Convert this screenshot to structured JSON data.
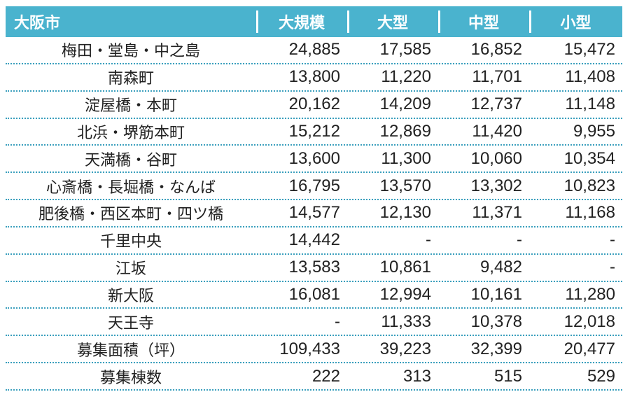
{
  "table": {
    "header": [
      "大阪市",
      "大規模",
      "大型",
      "中型",
      "小型"
    ],
    "rows": [
      {
        "area": "梅田・堂島・中之島",
        "values": [
          "24,885",
          "17,585",
          "16,852",
          "15,472"
        ]
      },
      {
        "area": "南森町",
        "values": [
          "13,800",
          "11,220",
          "11,701",
          "11,408"
        ]
      },
      {
        "area": "淀屋橋・本町",
        "values": [
          "20,162",
          "14,209",
          "12,737",
          "11,148"
        ]
      },
      {
        "area": "北浜・堺筋本町",
        "values": [
          "15,212",
          "12,869",
          "11,420",
          "9,955"
        ]
      },
      {
        "area": "天満橋・谷町",
        "values": [
          "13,600",
          "11,300",
          "10,060",
          "10,354"
        ]
      },
      {
        "area": "心斎橋・長堀橋・なんば",
        "values": [
          "16,795",
          "13,570",
          "13,302",
          "10,823"
        ]
      },
      {
        "area": "肥後橋・西区本町・四ツ橋",
        "values": [
          "14,577",
          "12,130",
          "11,371",
          "11,168"
        ]
      },
      {
        "area": "千里中央",
        "values": [
          "14,442",
          "-",
          "-",
          "-"
        ]
      },
      {
        "area": "江坂",
        "values": [
          "13,583",
          "10,861",
          "9,482",
          "-"
        ]
      },
      {
        "area": "新大阪",
        "values": [
          "16,081",
          "12,994",
          "10,161",
          "11,280"
        ]
      },
      {
        "area": "天王寺",
        "values": [
          "-",
          "11,333",
          "10,378",
          "12,018"
        ]
      },
      {
        "area": "募集面積（坪）",
        "values": [
          "109,433",
          "39,223",
          "32,399",
          "20,477"
        ]
      },
      {
        "area": "募集棟数",
        "values": [
          "222",
          "313",
          "515",
          "529"
        ]
      }
    ]
  }
}
